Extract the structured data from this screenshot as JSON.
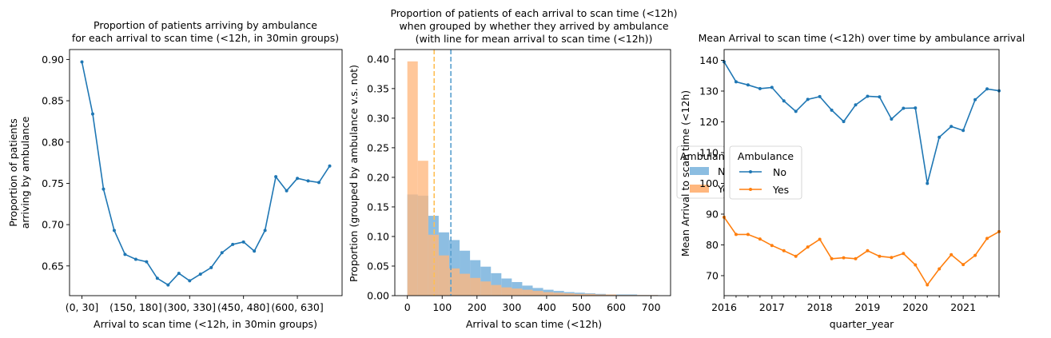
{
  "colors": {
    "blue": "#1f77b4",
    "orange": "#ff7f0e",
    "hist_blue": "#8bbde1",
    "hist_orange": "#ffb77e",
    "mean_blue": "#5aa0cf",
    "mean_orange": "#ffbf55"
  },
  "chart_data": [
    {
      "type": "line",
      "title": "Proportion of patients arriving by ambulance\nfor each arrival to scan time (<12h, in 30min groups)",
      "xlabel": "Arrival to scan time (<12h, in 30min groups)",
      "ylabel": "Proportion of patients\narriving by ambulance",
      "x_tick_labels": [
        "(0, 30]",
        "(150, 180]",
        "(300, 330]",
        "(450, 480]",
        "(600, 630]"
      ],
      "x_tick_positions": [
        0,
        5,
        10,
        15,
        20
      ],
      "y_ticks": [
        0.65,
        0.7,
        0.75,
        0.8,
        0.85,
        0.9
      ],
      "ylim": [
        0.614,
        0.912
      ],
      "xlim": [
        -1.15,
        24.15
      ],
      "series": [
        {
          "values": [
            0.897,
            0.834,
            0.743,
            0.693,
            0.664,
            0.658,
            0.655,
            0.635,
            0.627,
            0.641,
            0.632,
            0.64,
            0.648,
            0.666,
            0.676,
            0.679,
            0.668,
            0.693,
            0.758,
            0.741,
            0.756,
            0.753,
            0.751,
            0.771
          ]
        }
      ]
    },
    {
      "type": "histogram",
      "title": "Proportion of patients of each arrival to scan time (<12h)\nwhen grouped by whether they arrived by ambulance\n(with line for mean arrival to scan time (<12h))",
      "xlabel": "Arrival to scan time (<12h)",
      "ylabel": "Proportion (grouped by ambulance v.s. not)",
      "x_ticks": [
        0,
        100,
        200,
        300,
        400,
        500,
        600,
        700
      ],
      "y_ticks": [
        0.0,
        0.05,
        0.1,
        0.15,
        0.2,
        0.25,
        0.3,
        0.35,
        0.4
      ],
      "xlim": [
        -36,
        756
      ],
      "ylim": [
        0,
        0.416
      ],
      "bin_width": 30,
      "legend": {
        "title": "Ambulance",
        "labels": [
          "No",
          "Yes"
        ],
        "placement": "right (clipped)"
      },
      "series": [
        {
          "name": "No",
          "values": [
            0.171,
            0.169,
            0.135,
            0.107,
            0.094,
            0.076,
            0.06,
            0.049,
            0.038,
            0.029,
            0.023,
            0.017,
            0.013,
            0.01,
            0.008,
            0.006,
            0.005,
            0.004,
            0.003,
            0.002,
            0.002,
            0.002,
            0.001,
            0.001
          ]
        },
        {
          "name": "Yes",
          "values": [
            0.396,
            0.228,
            0.103,
            0.068,
            0.046,
            0.037,
            0.03,
            0.024,
            0.018,
            0.014,
            0.012,
            0.01,
            0.008,
            0.006,
            0.005,
            0.004,
            0.003,
            0.003,
            0.002,
            0.002,
            0.001,
            0.001,
            0.001,
            0.001
          ]
        }
      ],
      "mean_lines": [
        {
          "name": "No",
          "x": 125
        },
        {
          "name": "Yes",
          "x": 77
        }
      ]
    },
    {
      "type": "line",
      "title": "Mean Arrival to scan time (<12h) over time by ambulance arrival",
      "xlabel": "quarter_year",
      "ylabel": "Mean Arrival to scan time (<12h)",
      "x_ticks": [
        2016,
        2017,
        2018,
        2019,
        2020,
        2021
      ],
      "y_ticks": [
        70,
        80,
        90,
        100,
        110,
        120,
        130,
        140
      ],
      "xlim": [
        2016.0,
        2021.75
      ],
      "ylim": [
        63.5,
        143.5
      ],
      "legend": {
        "title": "Ambulance",
        "labels": [
          "No",
          "Yes"
        ],
        "placement": "center-left"
      },
      "x": [
        2016.0,
        2016.25,
        2016.5,
        2016.75,
        2017.0,
        2017.25,
        2017.5,
        2017.75,
        2018.0,
        2018.25,
        2018.5,
        2018.75,
        2019.0,
        2019.25,
        2019.5,
        2019.75,
        2020.0,
        2020.25,
        2020.5,
        2020.75,
        2021.0,
        2021.25,
        2021.5,
        2021.75
      ],
      "series": [
        {
          "name": "No",
          "values": [
            139.5,
            133.0,
            132.0,
            130.8,
            131.2,
            126.8,
            123.4,
            127.3,
            128.2,
            123.8,
            120.1,
            125.5,
            128.3,
            128.1,
            120.9,
            124.4,
            124.5,
            100.0,
            115.0,
            118.5,
            117.2,
            127.2,
            130.7,
            130.1
          ]
        },
        {
          "name": "Yes",
          "values": [
            89.0,
            83.4,
            83.4,
            81.9,
            79.8,
            78.1,
            76.3,
            79.3,
            81.8,
            75.5,
            75.8,
            75.5,
            78.1,
            76.3,
            75.9,
            77.2,
            73.5,
            67.0,
            72.2,
            76.8,
            73.6,
            76.6,
            82.1,
            84.3
          ]
        }
      ]
    }
  ]
}
